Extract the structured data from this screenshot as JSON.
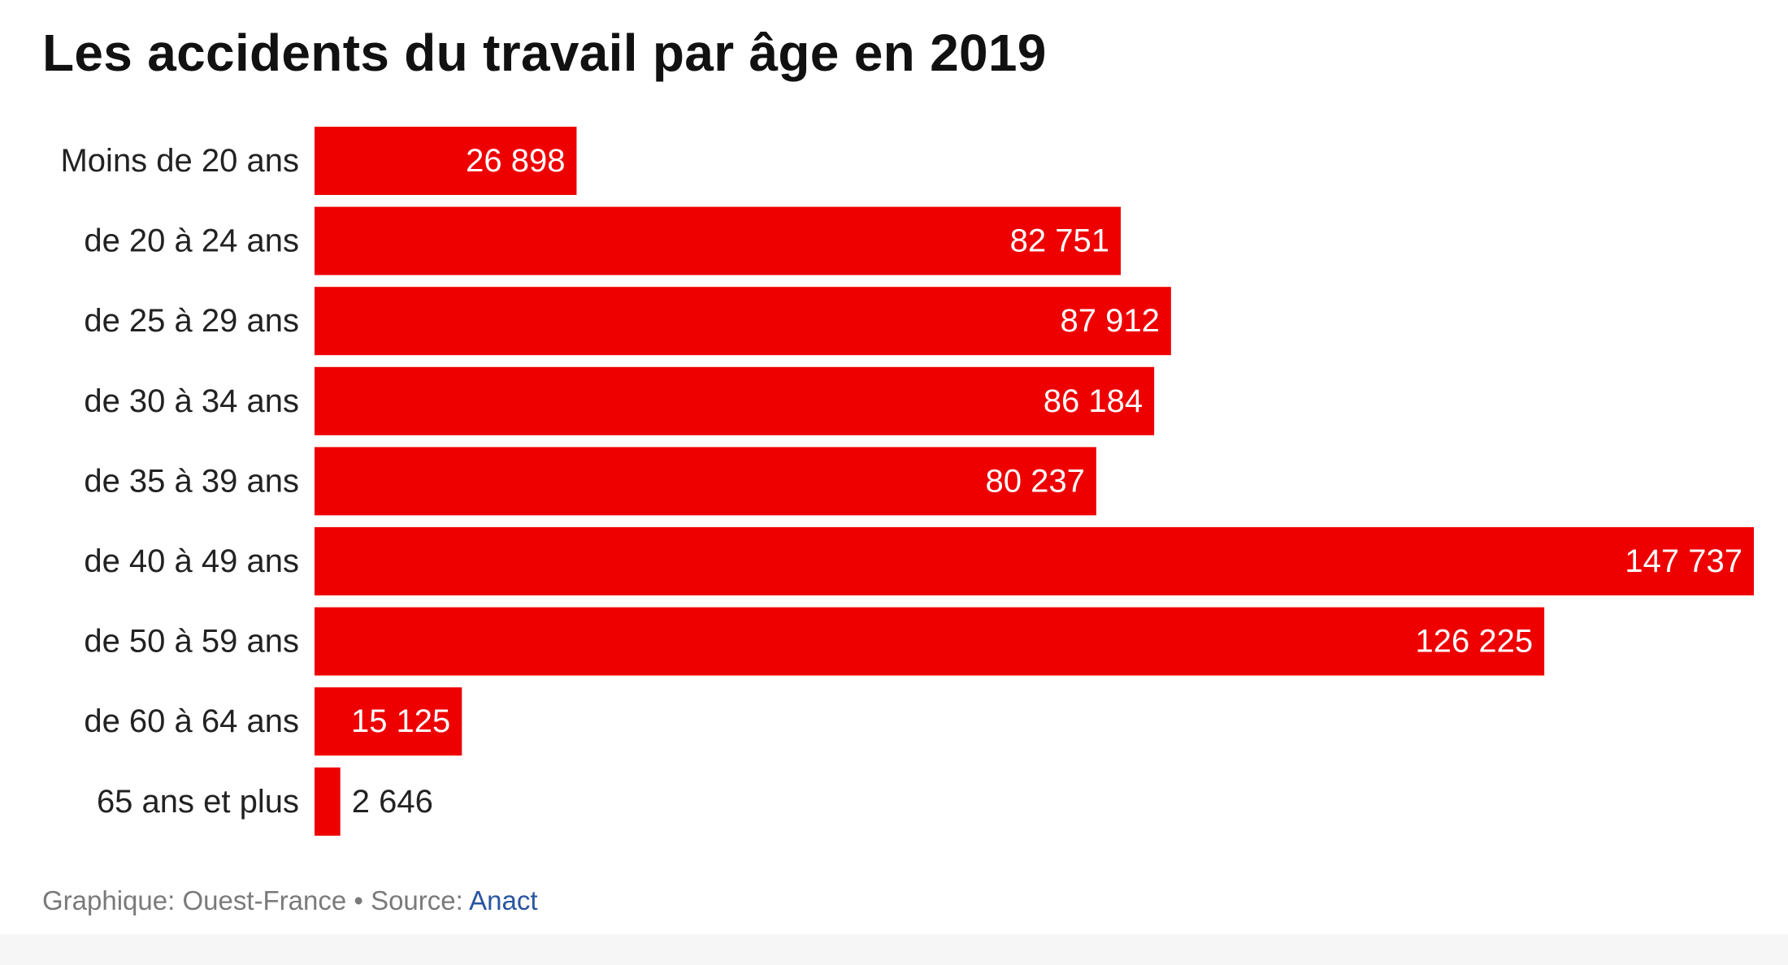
{
  "chart_data": {
    "type": "bar",
    "orientation": "horizontal",
    "title": "Les accidents du travail par âge en 2019",
    "categories": [
      "Moins de 20 ans",
      "de 20 à 24 ans",
      "de 25 à 29 ans",
      "de 30 à 34 ans",
      "de 35 à 39 ans",
      "de 40 à 49 ans",
      "de 50 à 59 ans",
      "de 60 à 64 ans",
      "65 ans et plus"
    ],
    "values": [
      26898,
      82751,
      87912,
      86184,
      80237,
      147737,
      126225,
      15125,
      2646
    ],
    "value_labels": [
      "26 898",
      "82 751",
      "87 912",
      "86 184",
      "80 237",
      "147 737",
      "126 225",
      "15 125",
      "2 646"
    ],
    "xlim": [
      0,
      147737
    ],
    "grid": false,
    "legend": "none",
    "bar_color": "#ee0000"
  },
  "footer": {
    "credit": "Graphique: Ouest-France • Source: ",
    "source_name": "Anact"
  }
}
